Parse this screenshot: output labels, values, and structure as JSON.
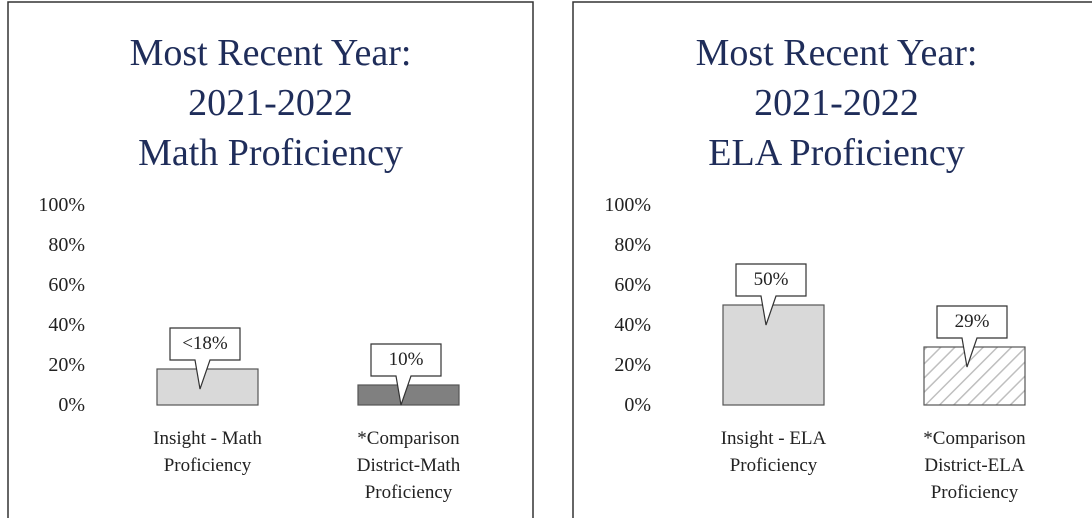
{
  "chart_data": [
    {
      "type": "bar",
      "title": [
        "Most Recent Year:",
        "2021-2022",
        "Math Proficiency"
      ],
      "categories": [
        "Insight - Math Proficiency",
        "*Comparison District-Math Proficiency"
      ],
      "values": [
        18,
        10
      ],
      "value_labels": [
        "<18%",
        "10%"
      ],
      "colors": [
        "#d9d9d9",
        "#808080"
      ],
      "hatch": [
        false,
        false
      ],
      "ylim": [
        0,
        100
      ],
      "yticks": [
        {
          "value": 0,
          "label": "0%"
        },
        {
          "value": 20,
          "label": "20%"
        },
        {
          "value": 40,
          "label": "40%"
        },
        {
          "value": 60,
          "label": "60%"
        },
        {
          "value": 80,
          "label": "80%"
        },
        {
          "value": 100,
          "label": "100%"
        }
      ]
    },
    {
      "type": "bar",
      "title": [
        "Most Recent Year:",
        "2021-2022",
        "ELA Proficiency"
      ],
      "categories": [
        "Insight - ELA Proficiency",
        "*Comparison District-ELA Proficiency"
      ],
      "values": [
        50,
        29
      ],
      "value_labels": [
        "50%",
        "29%"
      ],
      "colors": [
        "#d9d9d9",
        "#bfbfbf"
      ],
      "hatch": [
        false,
        true
      ],
      "ylim": [
        0,
        100
      ],
      "yticks": [
        {
          "value": 0,
          "label": "0%"
        },
        {
          "value": 20,
          "label": "20%"
        },
        {
          "value": 40,
          "label": "40%"
        },
        {
          "value": 60,
          "label": "60%"
        },
        {
          "value": 80,
          "label": "80%"
        },
        {
          "value": 100,
          "label": "100%"
        }
      ]
    }
  ]
}
